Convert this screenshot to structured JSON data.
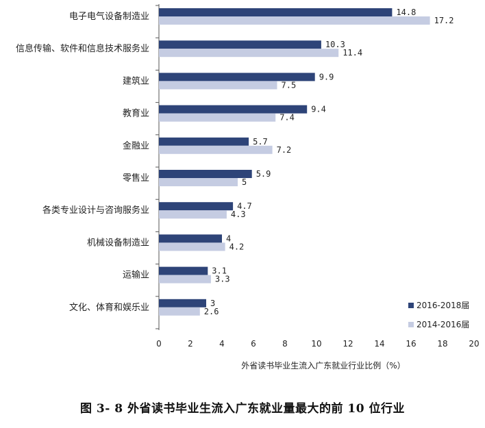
{
  "chart_data": {
    "type": "bar",
    "orientation": "horizontal",
    "categories": [
      "电子电气设备制造业",
      "信息传输、软件和信息技术服务业",
      "建筑业",
      "教育业",
      "金融业",
      "零售业",
      "各类专业设计与咨询服务业",
      "机械设备制造业",
      "运输业",
      "文化、体育和娱乐业"
    ],
    "series": [
      {
        "name": "2016-2018届",
        "color": "#2e4478",
        "values": [
          14.8,
          10.3,
          9.9,
          9.4,
          5.7,
          5.9,
          4.7,
          4,
          3.1,
          3
        ]
      },
      {
        "name": "2014-2016届",
        "color": "#c5cce2",
        "values": [
          17.2,
          11.4,
          7.5,
          7.4,
          7.2,
          5,
          4.3,
          4.2,
          3.3,
          2.6
        ]
      }
    ],
    "value_labels": [
      [
        "14.8",
        "10.3",
        "9.9",
        "9.4",
        "5.7",
        "5.9",
        "4.7",
        "4",
        "3.1",
        "3"
      ],
      [
        "17.2",
        "11.4",
        "7.5",
        "7.4",
        "7.2",
        "5",
        "4.3",
        "4.2",
        "3.3",
        "2.6"
      ]
    ],
    "xlim": [
      0,
      20
    ],
    "xticks": [
      "0",
      "2",
      "4",
      "6",
      "8",
      "10",
      "12",
      "14",
      "16",
      "18",
      "20"
    ],
    "xlabel": "外省读书毕业生流入广东就业行业比例（%）",
    "legend": {
      "position": "bottom-right"
    },
    "grid": false
  },
  "caption": "图 3- 8  外省读书毕业生流入广东就业量最大的前 10 位行业"
}
